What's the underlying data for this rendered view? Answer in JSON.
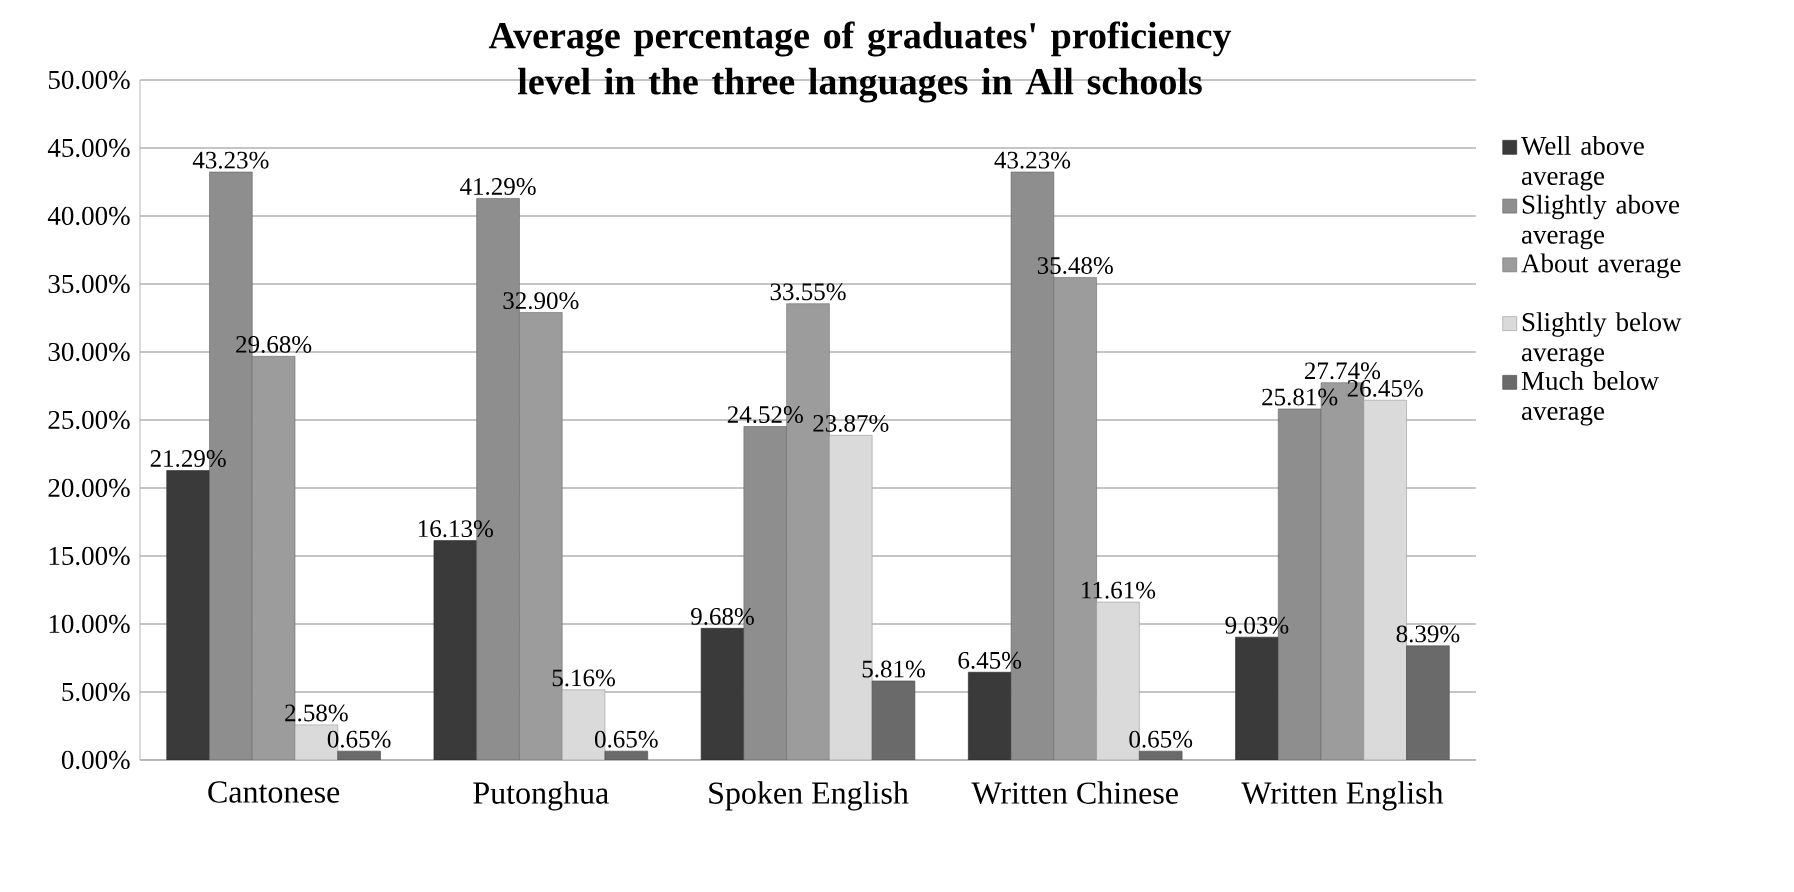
{
  "chart_data": {
    "type": "bar",
    "title": "Average percentage of graduates' proficiency level in the three languages in All schools",
    "categories": [
      "Cantonese",
      "Putonghua",
      "Spoken English",
      "Written Chinese",
      "Written English"
    ],
    "series": [
      {
        "name": "Well above average",
        "color": "#3a3a3a",
        "values": [
          21.29,
          16.13,
          9.68,
          6.45,
          9.03
        ],
        "value_labels": [
          "21.29%",
          "16.13%",
          "9.68%",
          "6.45%",
          "9.03%"
        ]
      },
      {
        "name": "Slightly above average",
        "color": "#8e8e8e",
        "values": [
          43.23,
          41.29,
          24.52,
          43.23,
          25.81
        ],
        "value_labels": [
          "43.23%",
          "41.29%",
          "24.52%",
          "43.23%",
          "25.81%"
        ]
      },
      {
        "name": "About average",
        "color": "#9c9c9c",
        "values": [
          29.68,
          32.9,
          33.55,
          35.48,
          27.74
        ],
        "value_labels": [
          "29.68%",
          "32.90%",
          "33.55%",
          "35.48%",
          "27.74%"
        ]
      },
      {
        "name": "Slightly below average",
        "color": "#dadada",
        "values": [
          2.58,
          5.16,
          23.87,
          11.61,
          26.45
        ],
        "value_labels": [
          "2.58%",
          "5.16%",
          "23.87%",
          "11.61%",
          "26.45%"
        ]
      },
      {
        "name": "Much below average",
        "color": "#6a6a6a",
        "values": [
          0.65,
          0.65,
          5.81,
          0.65,
          8.39
        ],
        "value_labels": [
          "0.65%",
          "0.65%",
          "5.81%",
          "0.65%",
          "8.39%"
        ]
      }
    ],
    "ylim": [
      0,
      50
    ],
    "yticks": [
      {
        "value": 0,
        "label": "0.00%"
      },
      {
        "value": 5,
        "label": "5.00%"
      },
      {
        "value": 10,
        "label": "10.00%"
      },
      {
        "value": 15,
        "label": "15.00%"
      },
      {
        "value": 20,
        "label": "20.00%"
      },
      {
        "value": 25,
        "label": "25.00%"
      },
      {
        "value": 30,
        "label": "30.00%"
      },
      {
        "value": 35,
        "label": "35.00%"
      },
      {
        "value": 40,
        "label": "40.00%"
      },
      {
        "value": 45,
        "label": "45.00%"
      },
      {
        "value": 50,
        "label": "50.00%"
      }
    ],
    "grid": "y",
    "legend": "right"
  }
}
